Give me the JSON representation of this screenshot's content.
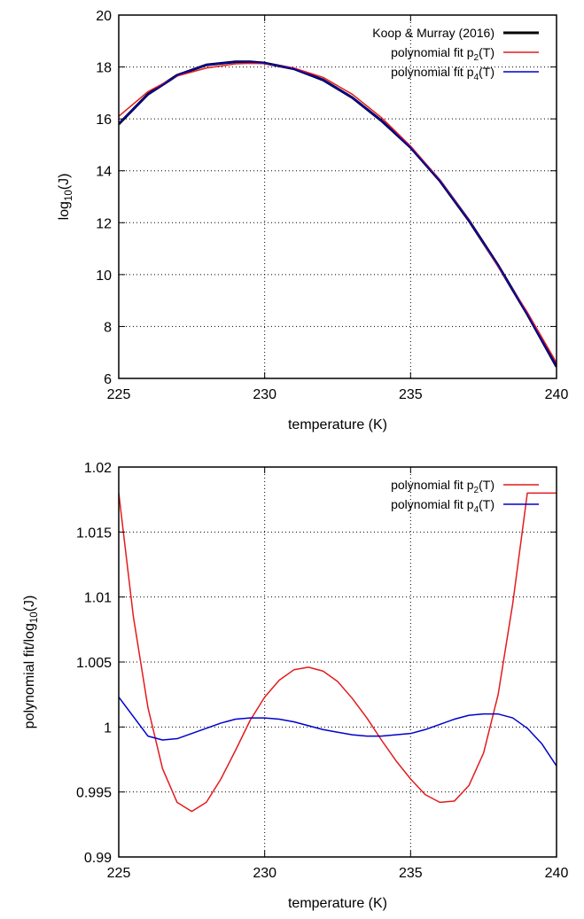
{
  "colors": {
    "koop": "#000000",
    "p2": "#e41a1c",
    "p4": "#0000cc"
  },
  "chart_data": [
    {
      "type": "line",
      "xlabel": "temperature (K)",
      "ylabel": {
        "base": "log",
        "sub": "10",
        "rest": "(J)"
      },
      "xlim": [
        225,
        240
      ],
      "ylim": [
        6,
        20
      ],
      "xticks": [
        225,
        230,
        235,
        240
      ],
      "yticks": [
        6,
        8,
        10,
        12,
        14,
        16,
        18,
        20
      ],
      "grid": true,
      "legend_position": "top-right",
      "series": [
        {
          "key": "koop",
          "name": {
            "base": "Koop & Murray (2016)",
            "sub": "",
            "rest": ""
          },
          "color": "#000000",
          "width": 3,
          "x": [
            225,
            226,
            227,
            228,
            229,
            229.5,
            230,
            231,
            232,
            233,
            234,
            235,
            236,
            237,
            238,
            239,
            240
          ],
          "y": [
            15.8,
            16.95,
            17.68,
            18.08,
            18.2,
            18.2,
            18.15,
            17.93,
            17.5,
            16.82,
            15.93,
            14.9,
            13.62,
            12.08,
            10.35,
            8.47,
            6.45
          ]
        },
        {
          "key": "p2",
          "name": {
            "base": "polynomial fit p",
            "sub": "2",
            "rest": "(T)"
          },
          "color": "#e41a1c",
          "width": 1.5,
          "x": [
            225,
            226,
            227,
            228,
            229,
            229.5,
            230,
            231,
            232,
            233,
            234,
            235,
            236,
            237,
            238,
            239,
            240
          ],
          "y": [
            16.1,
            17.05,
            17.65,
            17.96,
            18.12,
            18.14,
            18.13,
            17.96,
            17.6,
            16.95,
            16.05,
            14.95,
            13.65,
            12.1,
            10.3,
            8.55,
            6.6
          ]
        },
        {
          "key": "p4",
          "name": {
            "base": "polynomial fit p",
            "sub": "4",
            "rest": "(T)"
          },
          "color": "#0000cc",
          "width": 1.5,
          "x": [
            225,
            226,
            227,
            228,
            229,
            229.5,
            230,
            231,
            232,
            233,
            234,
            235,
            236,
            237,
            238,
            239,
            240
          ],
          "y": [
            15.82,
            16.94,
            17.68,
            18.08,
            18.2,
            18.2,
            18.15,
            17.93,
            17.5,
            16.82,
            15.93,
            14.9,
            13.62,
            12.08,
            10.35,
            8.47,
            6.45
          ]
        }
      ]
    },
    {
      "type": "line",
      "xlabel": "temperature (K)",
      "ylabel": {
        "base": "polynomial fit/log",
        "sub": "10",
        "rest": "(J)"
      },
      "xlim": [
        225,
        240
      ],
      "ylim": [
        0.99,
        1.02
      ],
      "xticks": [
        225,
        230,
        235,
        240
      ],
      "yticks": [
        0.99,
        0.995,
        1,
        1.005,
        1.01,
        1.015,
        1.02
      ],
      "ytick_labels": [
        "0.99",
        "0.995",
        "1",
        "1.005",
        "1.01",
        "1.015",
        "1.02"
      ],
      "grid": true,
      "legend_position": "top-right",
      "series": [
        {
          "key": "p2",
          "name": {
            "base": "polynomial fit p",
            "sub": "2",
            "rest": "(T)"
          },
          "color": "#e41a1c",
          "width": 1.5,
          "x": [
            225,
            225.5,
            226,
            226.5,
            227,
            227.5,
            228,
            228.5,
            229,
            229.5,
            230,
            230.5,
            231,
            231.5,
            232,
            232.5,
            233,
            233.5,
            234,
            234.5,
            235,
            235.5,
            236,
            236.5,
            237,
            237.5,
            238,
            238.5,
            239,
            239.5,
            240
          ],
          "y": [
            1.018,
            1.0085,
            1.0015,
            0.9968,
            0.9942,
            0.9935,
            0.9942,
            0.996,
            0.9982,
            1.0005,
            1.0023,
            1.0036,
            1.0044,
            1.0046,
            1.0043,
            1.0035,
            1.0022,
            1.0007,
            0.999,
            0.9974,
            0.996,
            0.9948,
            0.9942,
            0.9943,
            0.9955,
            0.998,
            1.0025,
            1.0095,
            1.018,
            1.018,
            1.018
          ]
        },
        {
          "key": "p4",
          "name": {
            "base": "polynomial fit p",
            "sub": "4",
            "rest": "(T)"
          },
          "color": "#0000cc",
          "width": 1.5,
          "x": [
            225,
            225.5,
            226,
            226.5,
            227,
            227.5,
            228,
            228.5,
            229,
            229.5,
            230,
            230.5,
            231,
            231.5,
            232,
            232.5,
            233,
            233.5,
            234,
            234.5,
            235,
            235.5,
            236,
            236.5,
            237,
            237.5,
            238,
            238.5,
            239,
            239.5,
            240
          ],
          "y": [
            1.0023,
            1.0008,
            0.9993,
            0.999,
            0.9991,
            0.9995,
            0.9999,
            1.0003,
            1.0006,
            1.0007,
            1.0007,
            1.0006,
            1.0004,
            1.0001,
            0.9998,
            0.9996,
            0.9994,
            0.9993,
            0.9993,
            0.9994,
            0.9995,
            0.9998,
            1.0002,
            1.0006,
            1.0009,
            1.001,
            1.001,
            1.0007,
            0.9999,
            0.9987,
            0.997
          ]
        }
      ]
    }
  ]
}
